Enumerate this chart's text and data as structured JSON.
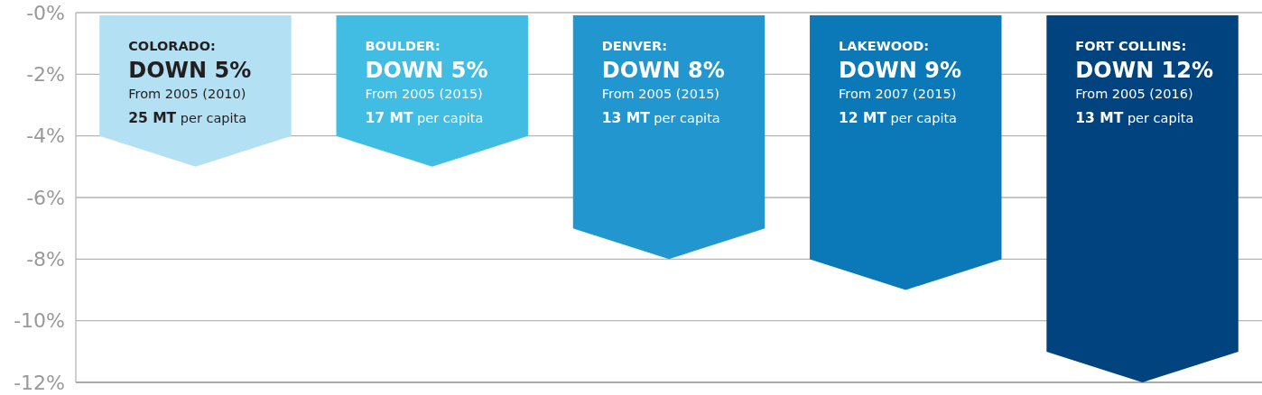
{
  "chart_data": {
    "type": "bar",
    "categories": [
      null,
      null,
      null,
      null,
      null
    ],
    "values": [
      -5,
      -5,
      -8,
      -9,
      -12
    ],
    "colors": [
      "#b3e0f2",
      "#41bde4",
      "#2196cf",
      "#0b78b8",
      "#00437e"
    ],
    "value_labels": [
      "DOWN 5%",
      "DOWN 5%",
      "DOWN 8%",
      "DOWN 9%",
      "DOWN 12%"
    ],
    "annotations": [
      "COLORADO:",
      "From 2005 (2010)",
      "25 MT per capita",
      "BOULDER:",
      "From 2005 (2015)",
      "17 MT per capita",
      "DENVER:",
      "From 2005 (2015)",
      "13 MT per capita",
      "LAKEWOOD:",
      "From 2007 (2015)",
      "12 MT per capita",
      "FORT COLLINS:",
      "From 2005 (2016)",
      "13 MT per capita"
    ],
    "ylim": [
      -12,
      0
    ],
    "yticks": [
      {
        "value": 0,
        "label": "-0%"
      },
      {
        "value": -2,
        "label": "-2%"
      },
      {
        "value": -4,
        "label": "-4%"
      },
      {
        "value": -6,
        "label": "-6%"
      },
      {
        "value": -8,
        "label": "-8%"
      },
      {
        "value": -10,
        "label": "-10%"
      },
      {
        "value": -12,
        "label": "-12%"
      }
    ],
    "grid": "y"
  }
}
